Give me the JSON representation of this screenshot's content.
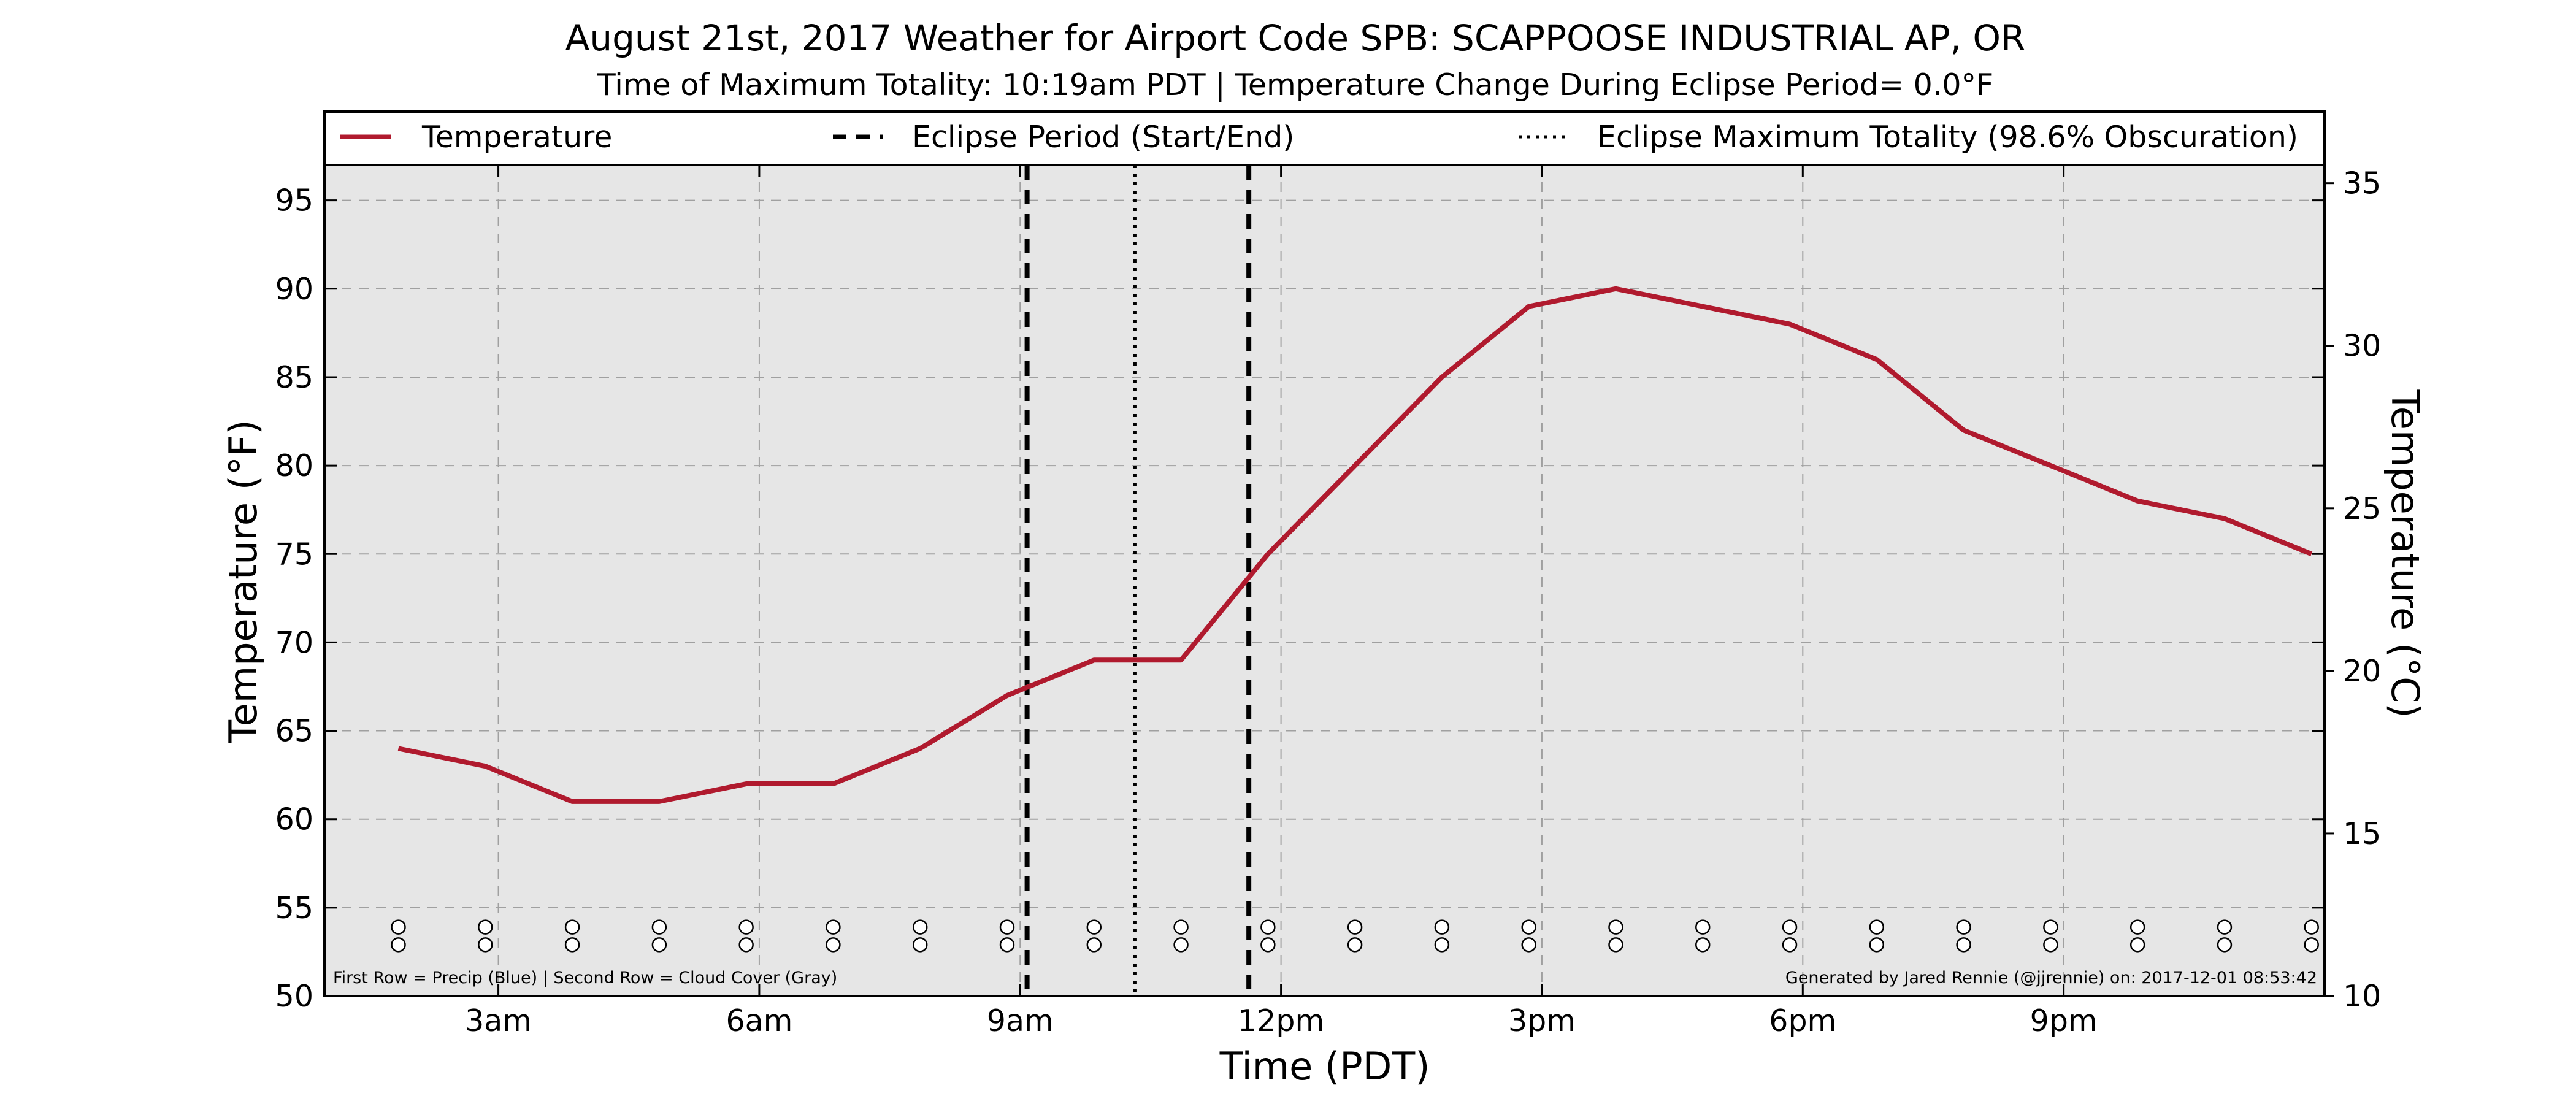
{
  "chart_data": {
    "type": "line",
    "title": "August 21st, 2017 Weather for Airport Code SPB: SCAPPOOSE INDUSTRIAL AP, OR",
    "subtitle": "Time of Maximum Totality: 10:19am PDT | Temperature Change During Eclipse Period= 0.0°F",
    "xlabel": "Time (PDT)",
    "ylabel": "Temperature (°F)",
    "ylabel_right": "Temperature (°C)",
    "xlim": [
      1,
      24
    ],
    "ylim": [
      50,
      97
    ],
    "ylim_right": [
      10,
      35.56
    ],
    "x_ticks": [
      3,
      6,
      9,
      12,
      15,
      18,
      21
    ],
    "x_tick_labels": [
      "3am",
      "6am",
      "9am",
      "12pm",
      "3pm",
      "6pm",
      "9pm"
    ],
    "y_ticks": [
      50,
      55,
      60,
      65,
      70,
      75,
      80,
      85,
      90,
      95
    ],
    "y_ticks_right": [
      10,
      15,
      20,
      25,
      30,
      35
    ],
    "grid": true,
    "legend_position": "top",
    "legend": [
      {
        "label": "Temperature",
        "style": "solid",
        "color": "#b01a2e"
      },
      {
        "label": "Eclipse Period (Start/End)",
        "style": "dashed",
        "color": "#000000"
      },
      {
        "label": "Eclipse Maximum Totality (98.6% Obscuration)",
        "style": "dotted",
        "color": "#000000"
      }
    ],
    "series": [
      {
        "name": "Temperature",
        "color": "#b01a2e",
        "x": [
          1.85,
          2.85,
          3.85,
          4.85,
          5.85,
          6.85,
          7.85,
          8.85,
          9.85,
          10.85,
          11.85,
          12.85,
          13.85,
          14.85,
          15.85,
          16.85,
          17.85,
          18.85,
          19.85,
          20.85,
          21.85,
          22.85,
          23.85
        ],
        "values": [
          64,
          63,
          61,
          61,
          62,
          62,
          64,
          67,
          69,
          69,
          75,
          80,
          85,
          89,
          90,
          89,
          88,
          86,
          82,
          80,
          78,
          77,
          75
        ]
      }
    ],
    "eclipse_start": 9.08,
    "eclipse_end": 11.63,
    "eclipse_max": 10.32,
    "symbol_rows": {
      "x": [
        1.85,
        2.85,
        3.85,
        4.85,
        5.85,
        6.85,
        7.85,
        8.85,
        9.85,
        10.85,
        11.85,
        12.85,
        13.85,
        14.85,
        15.85,
        16.85,
        17.85,
        18.85,
        19.85,
        20.85,
        21.85,
        22.85,
        23.85
      ],
      "symbol": "o",
      "row_values": [
        53.9,
        52.9
      ]
    },
    "colors": {
      "plot_bg": "#e6e6e6",
      "line": "#b01a2e",
      "grid": "#a0a0a0"
    }
  },
  "notes": {
    "left": "First Row = Precip (Blue) | Second Row = Cloud Cover (Gray)",
    "right": "Generated by Jared Rennie (@jjrennie) on: 2017-12-01 08:53:42"
  }
}
